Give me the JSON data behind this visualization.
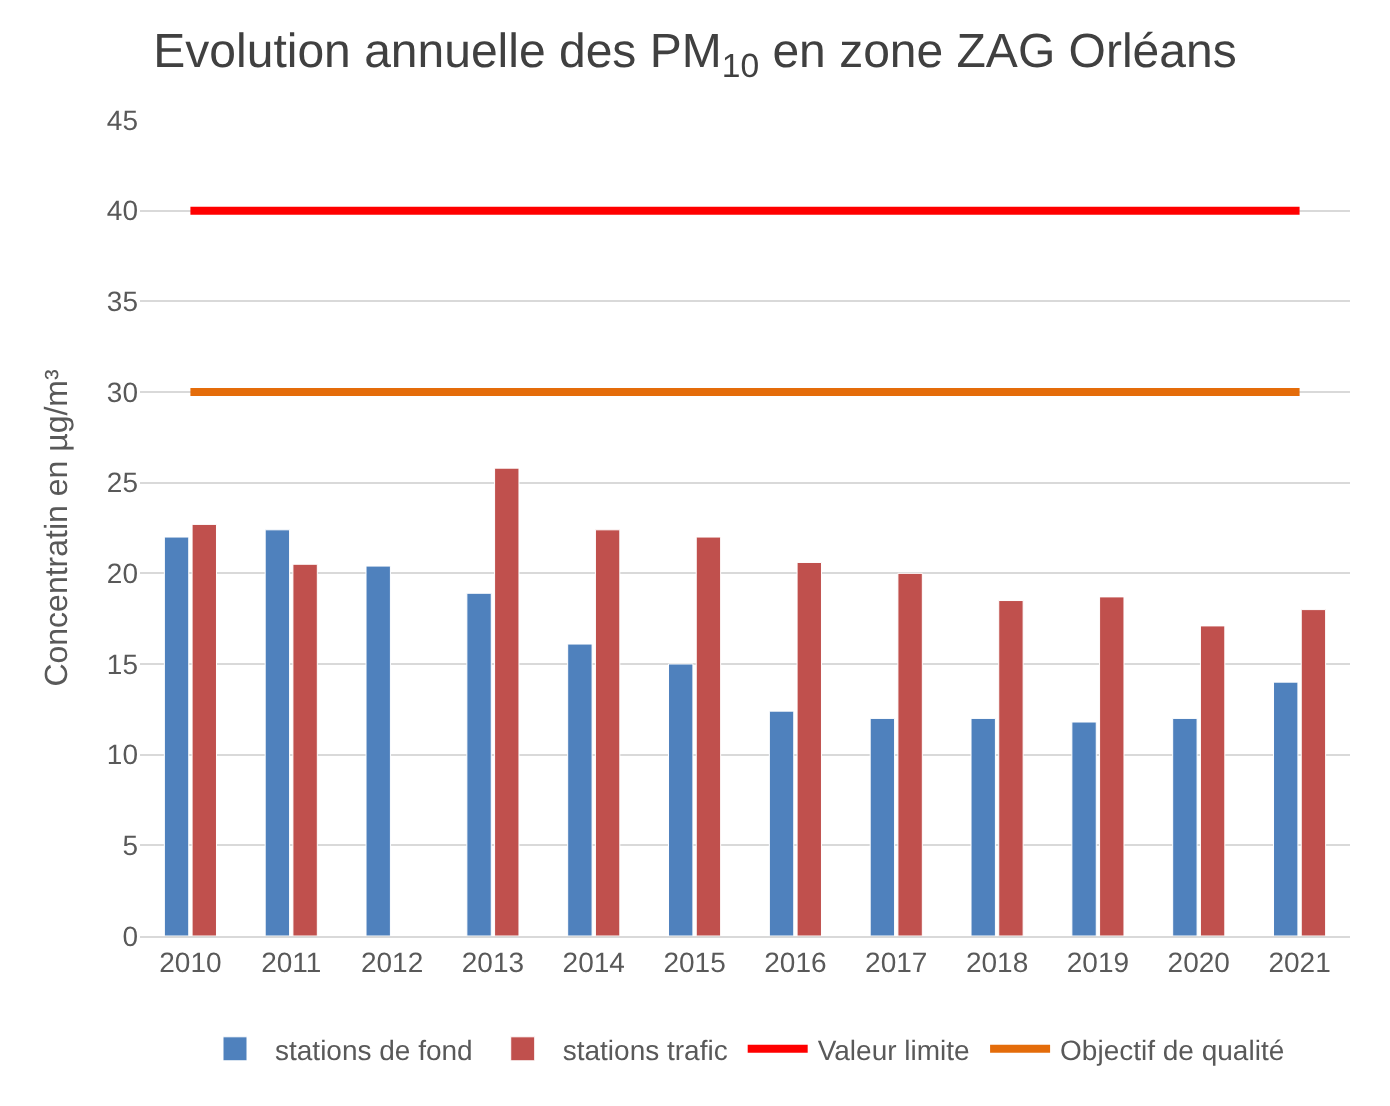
{
  "chart_data": {
    "type": "bar",
    "title": "Evolution annuelle des PM$_{10}$ en zone ZAG Orléans",
    "ylabel": "Concentratin en µg/m³",
    "categories": [
      "2010",
      "2011",
      "2012",
      "2013",
      "2014",
      "2015",
      "2016",
      "2017",
      "2018",
      "2019",
      "2020",
      "2021"
    ],
    "series": [
      {
        "name": "stations de fond",
        "color": "#4f81bd",
        "values": [
          22.0,
          22.4,
          20.4,
          18.9,
          16.1,
          15.0,
          12.4,
          12.0,
          12.0,
          11.8,
          12.0,
          14.0
        ]
      },
      {
        "name": "stations trafic",
        "color": "#c0504d",
        "values": [
          22.7,
          20.5,
          null,
          25.8,
          22.4,
          22.0,
          20.6,
          20.0,
          18.5,
          18.7,
          17.1,
          18.0
        ]
      },
      {
        "name": "Valeur limite",
        "type": "line",
        "color": "#ff0000",
        "values": [
          40,
          40,
          40,
          40,
          40,
          40,
          40,
          40,
          40,
          40,
          40,
          40
        ]
      },
      {
        "name": "Objectif de qualité",
        "type": "line",
        "color": "#e46c0a",
        "values": [
          30,
          30,
          30,
          30,
          30,
          30,
          30,
          30,
          30,
          30,
          30,
          30
        ]
      }
    ],
    "ylim": [
      0,
      45
    ],
    "yticks": [
      0,
      5,
      10,
      15,
      20,
      25,
      30,
      35,
      40,
      45
    ],
    "grid": "y",
    "legend": "bottom"
  }
}
